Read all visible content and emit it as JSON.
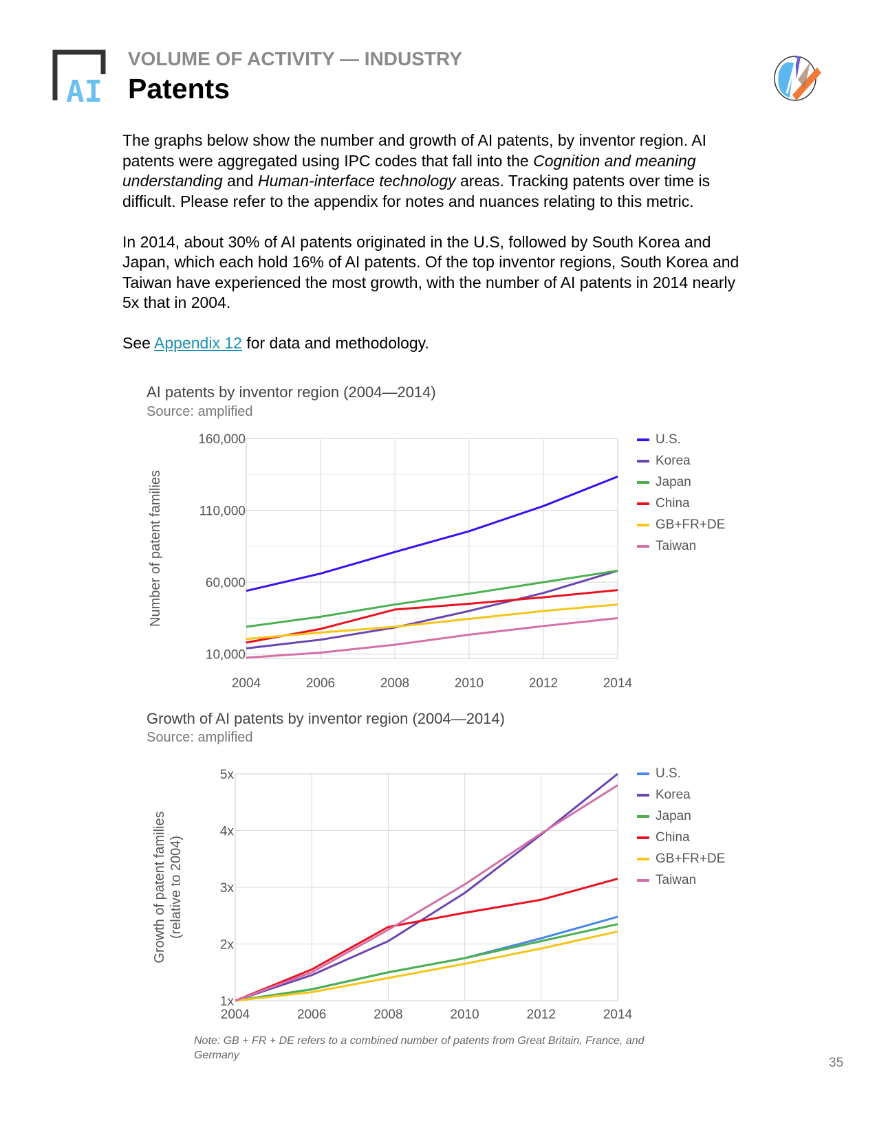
{
  "header": {
    "kicker": "VOLUME OF ACTIVITY — INDUSTRY",
    "title": "Patents",
    "logo_text": "AI"
  },
  "body": {
    "p1_a": "The graphs below show the number and growth of AI patents, by inventor region. AI patents were aggregated using IPC codes that fall into the ",
    "p1_em1": "Cognition and meaning understanding",
    "p1_b": " and ",
    "p1_em2": "Human-interface technology",
    "p1_c": " areas. Tracking patents over time is difficult. Please refer to the appendix for notes and nuances relating to this metric.",
    "p2": "In 2014, about 30% of AI patents originated in the U.S, followed by South Korea and Japan, which each hold 16% of AI patents. Of the top inventor regions, South Korea and Taiwan have experienced the most growth, with the number of AI patents in 2014 nearly 5x that in 2004.",
    "p3_a": "See ",
    "p3_link": "Appendix 12",
    "p3_b": " for data and methodology."
  },
  "chart_data": [
    {
      "type": "line",
      "title": "AI patents by inventor region (2004—2014)",
      "source": "Source: amplified",
      "xlabel": "",
      "ylabel": "Number of patent families",
      "x": [
        2004,
        2006,
        2008,
        2010,
        2012,
        2014
      ],
      "x_ticks": [
        "2004",
        "2006",
        "2008",
        "2010",
        "2012",
        "2014"
      ],
      "y_ticks": [
        "160,000",
        "110,000",
        "60,000",
        "10,000"
      ],
      "y_tick_values": [
        160000,
        110000,
        60000,
        10000
      ],
      "ylim": [
        7000,
        160000
      ],
      "grid": true,
      "legend": "right",
      "series": [
        {
          "name": "U.S.",
          "color": "#3b0ff0",
          "values": [
            54000,
            66000,
            81000,
            95500,
            113000,
            133500
          ]
        },
        {
          "name": "Korea",
          "color": "#6a45b0",
          "values": [
            14000,
            20000,
            28500,
            40000,
            52500,
            68000
          ]
        },
        {
          "name": "Japan",
          "color": "#4caf50",
          "values": [
            29000,
            36000,
            44500,
            52000,
            60000,
            68000
          ]
        },
        {
          "name": "China",
          "color": "#e8121e",
          "values": [
            18000,
            27500,
            41000,
            45000,
            49500,
            54500
          ]
        },
        {
          "name": "GB+FR+DE",
          "color": "#f5c518",
          "values": [
            20500,
            25000,
            29000,
            34500,
            40000,
            44500
          ]
        },
        {
          "name": "Taiwan",
          "color": "#d46fa8",
          "values": [
            7500,
            11000,
            16500,
            23500,
            29500,
            35000
          ]
        }
      ]
    },
    {
      "type": "line",
      "title": "Growth of AI patents by inventor region (2004—2014)",
      "source": "Source: amplified",
      "xlabel": "",
      "ylabel": "Growth of patent families",
      "ylabel2": "(relative to 2004)",
      "x": [
        2004,
        2006,
        2008,
        2010,
        2012,
        2014
      ],
      "x_ticks": [
        "2004",
        "2006",
        "2008",
        "2010",
        "2012",
        "2014"
      ],
      "y_ticks": [
        "5x",
        "4x",
        "3x",
        "2x",
        "1x"
      ],
      "y_tick_values": [
        5,
        4,
        3,
        2,
        1
      ],
      "ylim": [
        1,
        5
      ],
      "grid": true,
      "legend": "right",
      "series": [
        {
          "name": "U.S.",
          "color": "#4a86e8",
          "values": [
            1,
            1.2,
            1.5,
            1.75,
            2.1,
            2.48
          ]
        },
        {
          "name": "Korea",
          "color": "#6a45b0",
          "values": [
            1,
            1.45,
            2.05,
            2.9,
            3.93,
            5.0
          ]
        },
        {
          "name": "Japan",
          "color": "#4caf50",
          "values": [
            1,
            1.2,
            1.5,
            1.75,
            2.05,
            2.35
          ]
        },
        {
          "name": "China",
          "color": "#e8121e",
          "values": [
            1,
            1.55,
            2.3,
            2.55,
            2.78,
            3.15
          ]
        },
        {
          "name": "GB+FR+DE",
          "color": "#f5c518",
          "values": [
            1,
            1.15,
            1.4,
            1.65,
            1.92,
            2.22
          ]
        },
        {
          "name": "Taiwan",
          "color": "#d46fa8",
          "values": [
            1,
            1.5,
            2.25,
            3.05,
            3.95,
            4.8
          ]
        }
      ]
    }
  ],
  "note": "Note: GB + FR + DE refers to a combined number of patents from Great Britain, France, and Germany",
  "page_number": "35"
}
